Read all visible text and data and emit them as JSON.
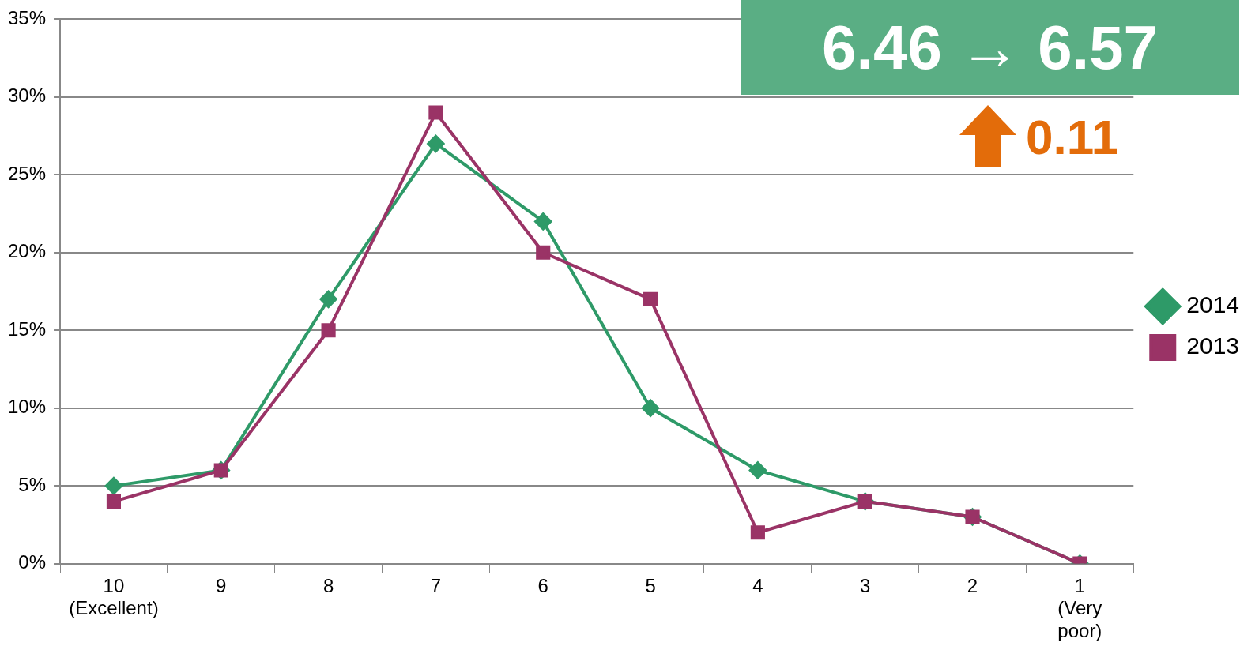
{
  "chart_data": {
    "type": "line",
    "categories": [
      "10\n(Excellent)",
      "9",
      "8",
      "7",
      "6",
      "5",
      "4",
      "3",
      "2",
      "1\n(Very\npoor)"
    ],
    "series": [
      {
        "name": "2014",
        "color": "#2e9a68",
        "marker": "diamond",
        "values": [
          5,
          6,
          17,
          27,
          22,
          10,
          6,
          4,
          3,
          0
        ]
      },
      {
        "name": "2013",
        "color": "#9a3366",
        "marker": "square",
        "values": [
          4,
          6,
          15,
          29,
          20,
          17,
          2,
          4,
          3,
          0
        ]
      }
    ],
    "ylim": [
      0,
      35
    ],
    "yticks": [
      {
        "value": 0,
        "label": "0%"
      },
      {
        "value": 5,
        "label": "5%"
      },
      {
        "value": 10,
        "label": "10%"
      },
      {
        "value": 15,
        "label": "15%"
      },
      {
        "value": 20,
        "label": "20%"
      },
      {
        "value": 25,
        "label": "25%"
      },
      {
        "value": 30,
        "label": "30%"
      },
      {
        "value": 35,
        "label": "35%"
      }
    ],
    "grid": "y",
    "legend": "right",
    "line_style": "solid",
    "annotations": [
      "6.46 → 6.57",
      "0.11"
    ]
  }
}
